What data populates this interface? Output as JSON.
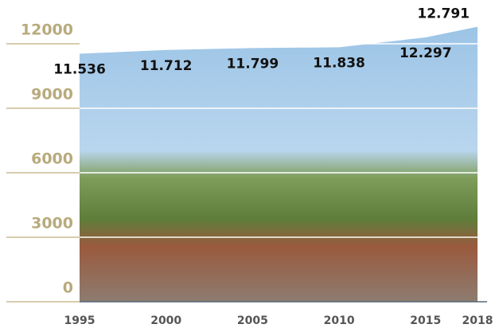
{
  "chart_data": {
    "type": "area",
    "x": [
      1995,
      2000,
      2005,
      2010,
      2015,
      2018
    ],
    "values": [
      11536,
      11712,
      11799,
      11838,
      12297,
      12791
    ],
    "value_labels": [
      "11.536",
      "11.712",
      "11.799",
      "11.838",
      "12.297",
      "12.791"
    ],
    "xlim": [
      1995,
      2018
    ],
    "xticks": [
      1995,
      2000,
      2005,
      2010,
      2015,
      2018
    ],
    "ylim": [
      0,
      12000
    ],
    "yticks": [
      0,
      3000,
      6000,
      9000,
      12000
    ],
    "grid": true
  }
}
